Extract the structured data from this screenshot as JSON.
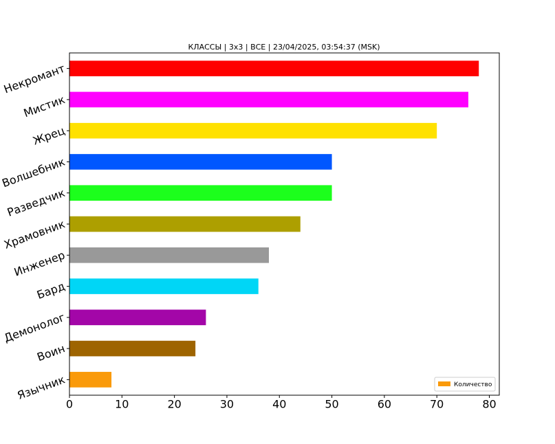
{
  "chart_data": {
    "type": "barh",
    "title": "КЛАССЫ | 3x3 | ВСЕ | 23/04/2025, 03:54:37 (MSK)",
    "categories": [
      "Язычник",
      "Воин",
      "Демонолог",
      "Бард",
      "Инженер",
      "Храмовник",
      "Разведчик",
      "Волшебник",
      "Жрец",
      "Мистик",
      "Некромант"
    ],
    "values": [
      8,
      24,
      26,
      36,
      38,
      44,
      50,
      50,
      70,
      76,
      78
    ],
    "colors": [
      "#fa9a0a",
      "#9e6400",
      "#a306a8",
      "#00d6f6",
      "#999999",
      "#ad9f00",
      "#1cff1c",
      "#0057ff",
      "#ffe100",
      "#ff00ff",
      "#ff0000"
    ],
    "legend": {
      "label": "Количество",
      "loc": "lower right"
    },
    "xlim": [
      0,
      81.9
    ],
    "xticks": [
      0,
      10,
      20,
      30,
      40,
      50,
      60,
      70,
      80
    ]
  }
}
